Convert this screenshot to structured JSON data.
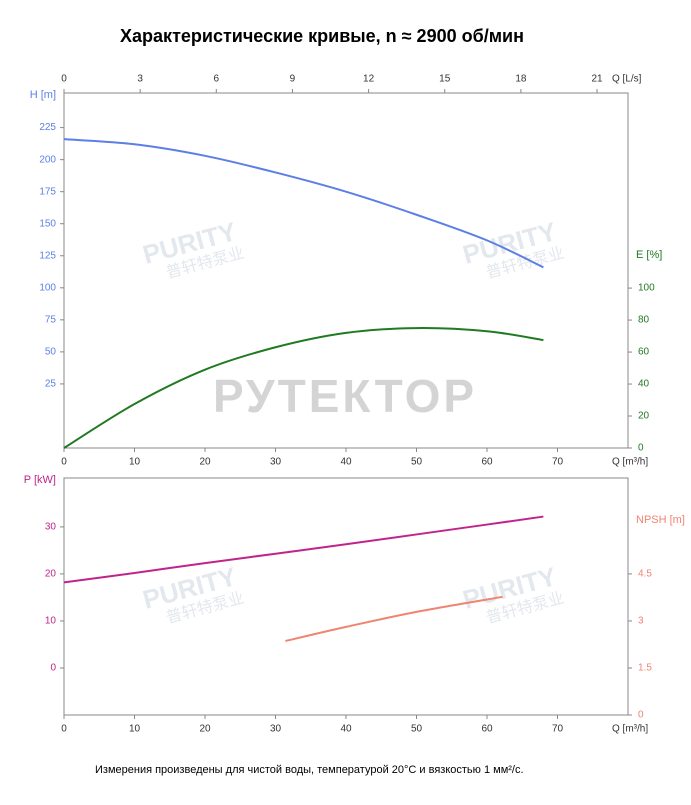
{
  "title": "Характеристические кривые, n ≈ 2900 об/мин",
  "footnote": "Измерения произведены для чистой воды, температурой 20°C и вязкостью 1 мм²/с.",
  "watermarks": [
    "PURITY",
    "普轩特泵业",
    "РУТЕКТОР"
  ],
  "chart_data": [
    {
      "type": "line",
      "xlabel": "Q [m³/h]",
      "x2label": "Q [L/s]",
      "ylabel": "H [m]",
      "y2label": "E [%]",
      "xlim": [
        0,
        80
      ],
      "xticks": [
        0,
        10,
        20,
        30,
        40,
        50,
        60,
        70
      ],
      "x2lim": [
        0,
        22.22
      ],
      "x2ticks": [
        0,
        3,
        6,
        9,
        12,
        15,
        18,
        21
      ],
      "ylim": [
        -25,
        252
      ],
      "yticks": [
        25,
        50,
        75,
        100,
        125,
        150,
        175,
        200,
        225
      ],
      "y2lim": [
        0,
        222
      ],
      "y2ticks": [
        0,
        20,
        40,
        60,
        80,
        100
      ],
      "series": [
        {
          "color": "#5b7fe6",
          "axis": "y",
          "x": [
            0,
            10,
            20,
            30,
            40,
            50,
            60,
            68
          ],
          "values": [
            216,
            212,
            203,
            190,
            175,
            157,
            137,
            116
          ]
        },
        {
          "color": "#1f7a22",
          "axis": "y2",
          "x": [
            0,
            10,
            20,
            30,
            40,
            50,
            60,
            68
          ],
          "values": [
            0,
            27.5,
            49,
            63,
            72,
            75,
            73,
            67.5
          ]
        }
      ]
    },
    {
      "type": "line",
      "xlabel": "Q [m³/h]",
      "ylabel": "P [kW]",
      "y2label": "NPSH [m]",
      "xlim": [
        0,
        80
      ],
      "xticks": [
        0,
        10,
        20,
        30,
        40,
        50,
        60,
        70
      ],
      "ylim": [
        -10,
        40.4
      ],
      "yticks": [
        0,
        10,
        20,
        30
      ],
      "y2lim": [
        0,
        7.56
      ],
      "y2ticks": [
        0,
        1.5,
        3,
        4.5
      ],
      "series": [
        {
          "color": "#c0248c",
          "axis": "y",
          "x": [
            0,
            10,
            20,
            30,
            40,
            50,
            60,
            68
          ],
          "values": [
            18.2,
            20.2,
            22.3,
            24.3,
            26.3,
            28.4,
            30.5,
            32.2
          ]
        },
        {
          "color": "#f08472",
          "axis": "y2",
          "x": [
            31.4,
            40,
            50,
            62.2
          ],
          "values": [
            2.36,
            2.81,
            3.29,
            3.77
          ]
        }
      ]
    }
  ]
}
